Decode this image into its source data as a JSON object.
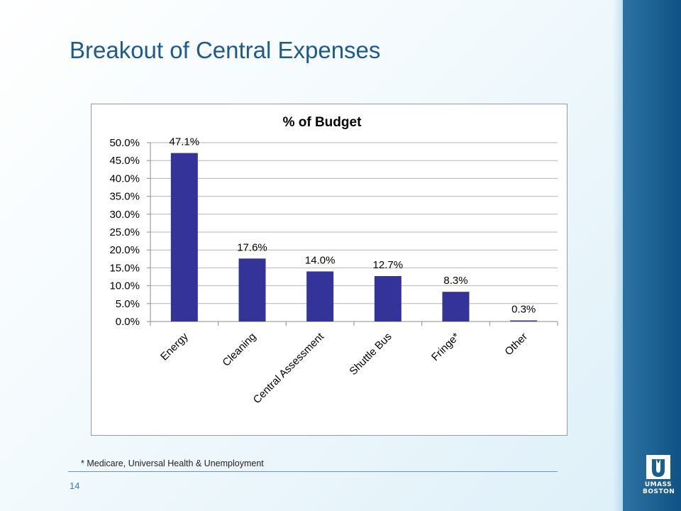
{
  "slide": {
    "title": "Breakout of Central Expenses",
    "footnote": "* Medicare, Universal Health & Unemployment",
    "page_number": "14",
    "logo_lines": [
      "UMASS",
      "BOSTON"
    ]
  },
  "colors": {
    "bar": "#333399",
    "title": "#1e5a8c",
    "sidebar": "#1a5f92"
  },
  "chart_data": {
    "type": "bar",
    "title": "% of Budget",
    "categories": [
      "Energy",
      "Cleaning",
      "Central Assessment",
      "Shuttle Bus",
      "Fringe*",
      "Other"
    ],
    "values": [
      47.1,
      17.6,
      14.0,
      12.7,
      8.3,
      0.3
    ],
    "data_labels": [
      "47.1%",
      "17.6%",
      "14.0%",
      "12.7%",
      "8.3%",
      "0.3%"
    ],
    "y_ticks": [
      "0.0%",
      "5.0%",
      "10.0%",
      "15.0%",
      "20.0%",
      "25.0%",
      "30.0%",
      "35.0%",
      "40.0%",
      "45.0%",
      "50.0%"
    ],
    "ylim": [
      0,
      50
    ],
    "y_step": 5,
    "grid": true,
    "legend": "none",
    "xlabel": "",
    "ylabel": ""
  }
}
